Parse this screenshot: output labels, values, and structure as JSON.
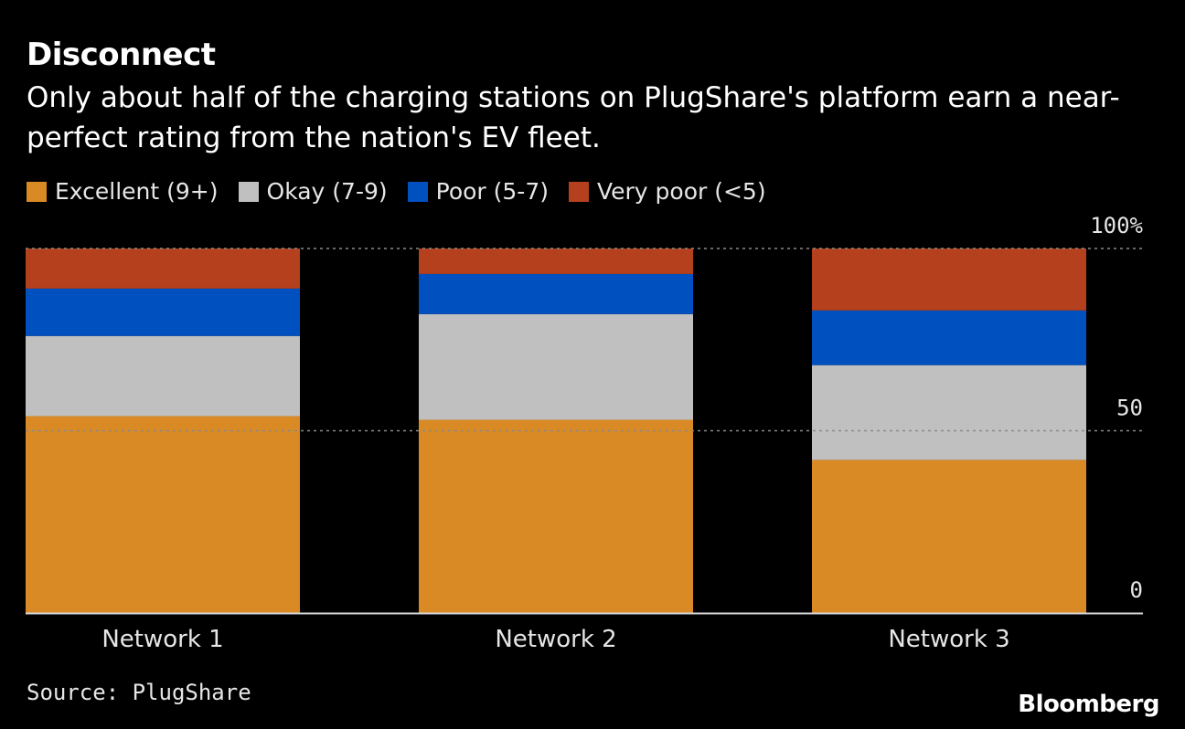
{
  "chart_data": {
    "type": "bar",
    "stacked": true,
    "title": "Disconnect",
    "subtitle": "Only about half of the charging stations on PlugShare's platform earn a near-perfect rating from the nation's EV fleet.",
    "categories": [
      "Network 1",
      "Network 2",
      "Network 3"
    ],
    "series": [
      {
        "name": "Excellent (9+)",
        "color": "#d98a25",
        "values": [
          54,
          53,
          42
        ]
      },
      {
        "name": "Okay (7-9)",
        "color": "#c0c0c0",
        "values": [
          22,
          29,
          26
        ]
      },
      {
        "name": "Poor (5-7)",
        "color": "#0050c0",
        "values": [
          13,
          11,
          15
        ]
      },
      {
        "name": "Very poor (<5)",
        "color": "#b5401e",
        "values": [
          11,
          7,
          17
        ]
      }
    ],
    "yticks": [
      {
        "value": 0,
        "label": "0"
      },
      {
        "value": 50,
        "label": "50"
      },
      {
        "value": 100,
        "label": "100%"
      }
    ],
    "ylim": [
      0,
      100
    ],
    "xlabel": "",
    "ylabel": "",
    "legend_position": "top-left",
    "grid": "dotted"
  },
  "footer": {
    "source": "Source: PlugShare",
    "brand": "Bloomberg"
  }
}
